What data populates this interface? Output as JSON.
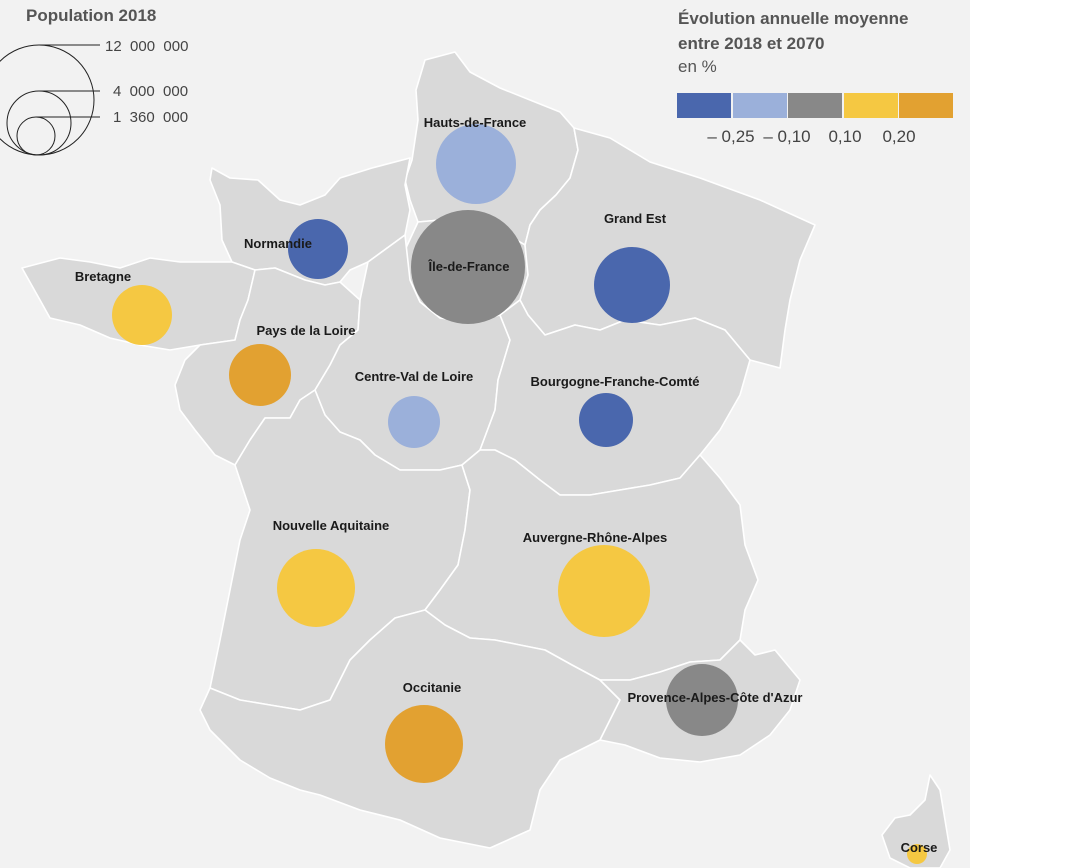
{
  "size_legend": {
    "title": "Population 2018",
    "entries": [
      {
        "label": "12  000  000",
        "value": 12000000
      },
      {
        "label": "4  000  000",
        "value": 4000000
      },
      {
        "label": "1  360  000",
        "value": 1360000
      }
    ]
  },
  "color_legend": {
    "title_line1": "Évolution annuelle moyenne",
    "title_line2": "entre 2018 et 2070",
    "unit": "en %",
    "classes": [
      {
        "color": "#4a67ad"
      },
      {
        "color": "#9bb0da"
      },
      {
        "color": "#888888"
      },
      {
        "color": "#f5c842"
      },
      {
        "color": "#e2a131"
      }
    ],
    "breaks": [
      "– 0,25",
      "– 0,10",
      "0,10",
      "0,20"
    ]
  },
  "map_data": {
    "regions": [
      {
        "name": "Hauts-de-France",
        "color_class": 1
      },
      {
        "name": "Normandie",
        "color_class": 0
      },
      {
        "name": "Île-de-France",
        "color_class": 2
      },
      {
        "name": "Grand Est",
        "color_class": 0
      },
      {
        "name": "Bretagne",
        "color_class": 3
      },
      {
        "name": "Pays de la Loire",
        "color_class": 4
      },
      {
        "name": "Centre-Val de Loire",
        "color_class": 1
      },
      {
        "name": "Bourgogne-Franche-Comté",
        "color_class": 0
      },
      {
        "name": "Nouvelle Aquitaine",
        "color_class": 3
      },
      {
        "name": "Auvergne-Rhône-Alpes",
        "color_class": 3
      },
      {
        "name": "Occitanie",
        "color_class": 4
      },
      {
        "name": "Provence-Alpes-Côte d'Azur",
        "color_class": 2
      },
      {
        "name": "Corse",
        "color_class": 3
      }
    ]
  }
}
